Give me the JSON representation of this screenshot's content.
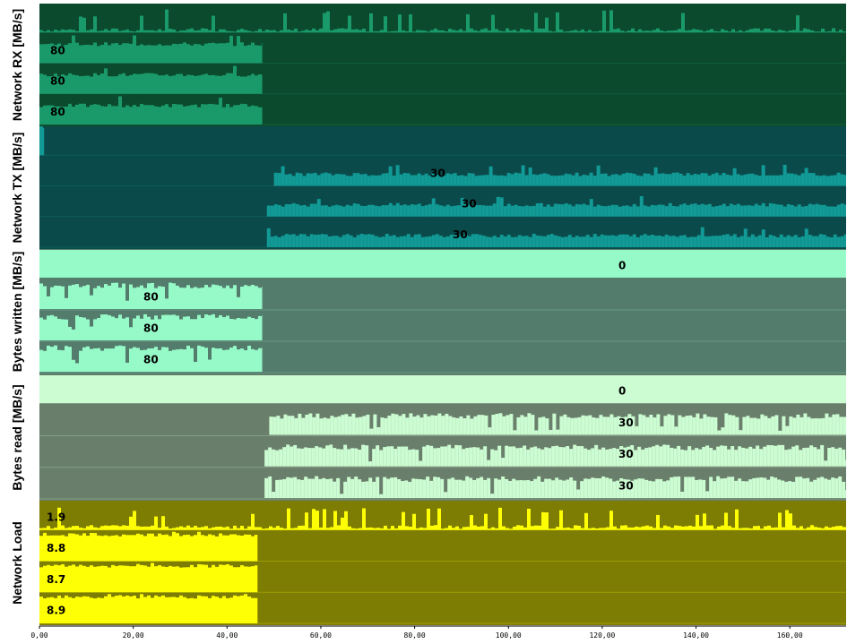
{
  "chart_data": {
    "type": "bar",
    "x_range": [
      0,
      172
    ],
    "x_ticks": [
      "0,00",
      "20,00",
      "40,00",
      "60,00",
      "80,00",
      "100,00",
      "120,00",
      "140,00",
      "160,00"
    ],
    "x_tick_values": [
      0,
      20,
      40,
      60,
      80,
      100,
      120,
      140,
      160
    ],
    "panels": [
      {
        "id": "rx",
        "ylabel": "Network RX [MB/s]",
        "colors": {
          "bg": "#0b4a2c",
          "fill": "#1a9a6a",
          "spike": "#15a070"
        },
        "rows": [
          {
            "label": "",
            "active": [
              [
                0,
                172
              ]
            ],
            "level": 0.08,
            "spiky": true
          },
          {
            "label": "80",
            "active": [
              [
                0,
                47.5
              ]
            ],
            "level": 0.62
          },
          {
            "label": "80",
            "active": [
              [
                0,
                47.5
              ]
            ],
            "level": 0.62
          },
          {
            "label": "80",
            "active": [
              [
                0,
                47.5
              ]
            ],
            "level": 0.62
          }
        ]
      },
      {
        "id": "tx",
        "ylabel": "Network TX [MB/s]",
        "colors": {
          "bg": "#0b4a4a",
          "fill": "#119a96",
          "spike": "#1aa8a4"
        },
        "rows": [
          {
            "label": "",
            "active": [
              [
                0,
                1
              ]
            ],
            "level": 0.9
          },
          {
            "label": "30",
            "active": [
              [
                50,
                172
              ]
            ],
            "level": 0.38
          },
          {
            "label": "30",
            "active": [
              [
                48.5,
                172
              ]
            ],
            "level": 0.38
          },
          {
            "label": "30",
            "active": [
              [
                48.5,
                172
              ]
            ],
            "level": 0.38
          }
        ]
      },
      {
        "id": "bw",
        "ylabel": "Bytes written [MB/s]",
        "colors": {
          "bg": "#547c6c",
          "fill": "#96f9c8",
          "light": "#96f9c8"
        },
        "rows": [
          {
            "label": "0",
            "full": true
          },
          {
            "label": "80",
            "active": [
              [
                0,
                47.5
              ]
            ],
            "level": 0.95,
            "inverse": true
          },
          {
            "label": "80",
            "active": [
              [
                0,
                47.5
              ]
            ],
            "level": 0.95,
            "inverse": true
          },
          {
            "label": "80",
            "active": [
              [
                0,
                47.5
              ]
            ],
            "level": 0.95,
            "inverse": true
          }
        ]
      },
      {
        "id": "br",
        "ylabel": "Bytes read [MB/s]",
        "colors": {
          "bg": "#6a7f6b",
          "fill": "#ccfcd2",
          "light": "#ccfcd2"
        },
        "rows": [
          {
            "label": "0",
            "full": true
          },
          {
            "label": "30",
            "active": [
              [
                49,
                172
              ]
            ],
            "level": 0.78,
            "inverse": true
          },
          {
            "label": "30",
            "active": [
              [
                48,
                172
              ]
            ],
            "level": 0.78,
            "inverse": true
          },
          {
            "label": "30",
            "active": [
              [
                48,
                172
              ]
            ],
            "level": 0.78,
            "inverse": true
          }
        ]
      },
      {
        "id": "nl",
        "ylabel": "Network Load",
        "colors": {
          "bg": "#7d7c03",
          "fill": "#fefe05",
          "spike": "#fefe05"
        },
        "rows": [
          {
            "label": "1.9",
            "active": [
              [
                0,
                172
              ]
            ],
            "level": 0.1,
            "spiky": true
          },
          {
            "label": "8.8",
            "active": [
              [
                0,
                46.5
              ]
            ],
            "level": 0.85
          },
          {
            "label": "8.7",
            "active": [
              [
                0,
                46.5
              ]
            ],
            "level": 0.85
          },
          {
            "label": "8.9",
            "active": [
              [
                0,
                46.5
              ]
            ],
            "level": 0.85
          }
        ]
      }
    ]
  }
}
